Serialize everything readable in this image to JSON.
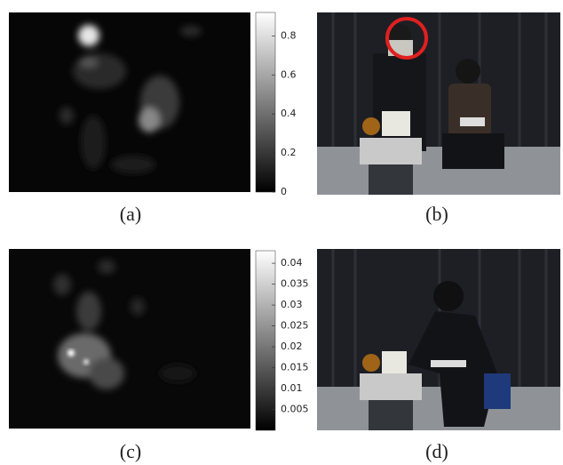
{
  "panels": [
    {
      "label": "(a)",
      "colorbar": {
        "lim": [
          0,
          0.92
        ],
        "ticks": [
          0,
          0.2,
          0.4,
          0.6,
          0.8
        ]
      }
    },
    {
      "label": "(b)"
    },
    {
      "label": "(c)",
      "colorbar": {
        "lim": [
          0,
          0.043
        ],
        "ticks": [
          0.005,
          0.01,
          0.015,
          0.02,
          0.025,
          0.03,
          0.035,
          0.04
        ]
      }
    },
    {
      "label": "(d)"
    }
  ]
}
